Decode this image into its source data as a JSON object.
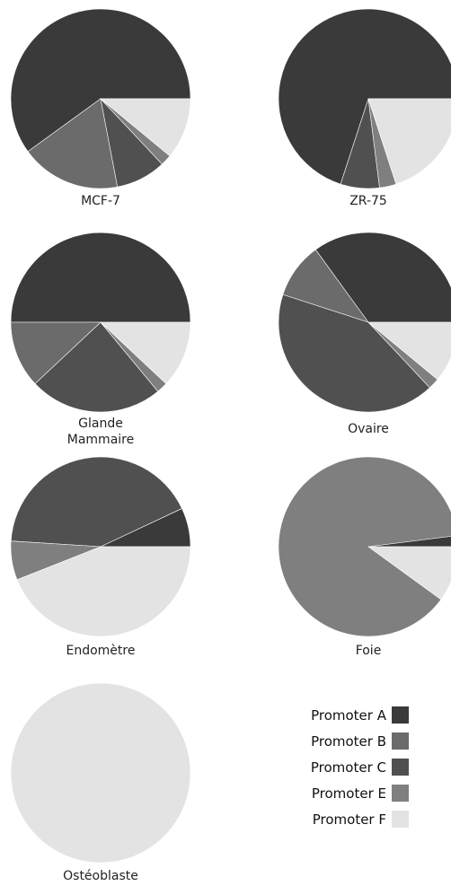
{
  "chart_data": {
    "type": "pie",
    "categories": [
      "Promoter A",
      "Promoter B",
      "Promoter C",
      "Promoter E",
      "Promoter F"
    ],
    "colors": {
      "Promoter A": "#3a3a3a",
      "Promoter B": "#6b6b6b",
      "Promoter C": "#505050",
      "Promoter E": "#7f7f7f",
      "Promoter F": "#e3e3e3"
    },
    "pies": [
      {
        "name": "MCF-7",
        "label_lines": [
          "MCF-7"
        ],
        "values": {
          "Promoter A": 60,
          "Promoter B": 18,
          "Promoter C": 9,
          "Promoter E": 2,
          "Promoter F": 11
        }
      },
      {
        "name": "ZR-75",
        "label_lines": [
          "ZR-75"
        ],
        "values": {
          "Promoter A": 70,
          "Promoter B": 0,
          "Promoter C": 7,
          "Promoter E": 3,
          "Promoter F": 20
        }
      },
      {
        "name": "Glande Mammaire",
        "label_lines": [
          "Glande",
          "Mammaire"
        ],
        "values": {
          "Promoter A": 50,
          "Promoter B": 12,
          "Promoter C": 24,
          "Promoter E": 2,
          "Promoter F": 12
        }
      },
      {
        "name": "Ovaire",
        "label_lines": [
          "Ovaire"
        ],
        "values": {
          "Promoter A": 35,
          "Promoter B": 10,
          "Promoter C": 42,
          "Promoter E": 2,
          "Promoter F": 11
        }
      },
      {
        "name": "Endomètre",
        "label_lines": [
          "Endomètre"
        ],
        "values": {
          "Promoter A": 7,
          "Promoter B": 0,
          "Promoter C": 42,
          "Promoter E": 7,
          "Promoter F": 44
        }
      },
      {
        "name": "Foie",
        "label_lines": [
          "Foie"
        ],
        "values": {
          "Promoter A": 2,
          "Promoter B": 0,
          "Promoter C": 0,
          "Promoter E": 88,
          "Promoter F": 10
        }
      },
      {
        "name": "Ostéoblaste",
        "label_lines": [
          "Ostéoblaste"
        ],
        "values": {
          "Promoter A": 0,
          "Promoter B": 0,
          "Promoter C": 0,
          "Promoter E": 0,
          "Promoter F": 100
        }
      }
    ],
    "legend": [
      "Promoter A",
      "Promoter B",
      "Promoter C",
      "Promoter E",
      "Promoter F"
    ],
    "legend_position": "bottom-right"
  }
}
